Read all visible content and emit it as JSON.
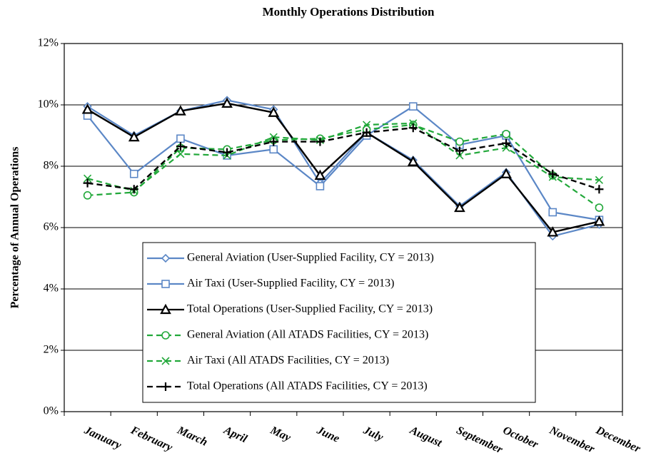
{
  "chart_data": {
    "type": "line",
    "title": "Monthly Operations Distribution",
    "y_label": "Percentage of Annual Operations",
    "categories": [
      "January",
      "February",
      "March",
      "April",
      "May",
      "June",
      "July",
      "August",
      "September",
      "October",
      "November",
      "December"
    ],
    "ylim": [
      0,
      12
    ],
    "yticks": [
      {
        "value": 0,
        "label": "0%"
      },
      {
        "value": 2,
        "label": "2%"
      },
      {
        "value": 4,
        "label": "4%"
      },
      {
        "value": 6,
        "label": "6%"
      },
      {
        "value": 8,
        "label": "8%"
      },
      {
        "value": 10,
        "label": "10%"
      },
      {
        "value": 12,
        "label": "12%"
      }
    ],
    "grid": true,
    "series": [
      {
        "name": "General Aviation (User-Supplied Facility, CY = 2013)",
        "color": "#5b87c6",
        "marker": "diamond",
        "dashed": false,
        "values": [
          9.95,
          9.0,
          9.8,
          10.15,
          9.85,
          7.45,
          9.1,
          8.2,
          6.7,
          7.8,
          5.72,
          6.1
        ]
      },
      {
        "name": "Air Taxi (User-Supplied Facility, CY = 2013)",
        "color": "#5b87c6",
        "marker": "square",
        "dashed": false,
        "values": [
          9.65,
          7.75,
          8.9,
          8.35,
          8.55,
          7.35,
          9.0,
          9.95,
          8.7,
          9.0,
          6.5,
          6.25
        ]
      },
      {
        "name": "Total Operations (User-Supplied Facility, CY = 2013)",
        "color": "#000000",
        "marker": "triangle",
        "dashed": false,
        "values": [
          9.85,
          8.95,
          9.8,
          10.05,
          9.75,
          7.7,
          9.1,
          8.15,
          6.65,
          7.75,
          5.85,
          6.2
        ]
      },
      {
        "name": "General Aviation (All ATADS Facilities, CY = 2013)",
        "color": "#22a83a",
        "marker": "circle",
        "dashed": true,
        "values": [
          7.05,
          7.15,
          8.6,
          8.55,
          8.85,
          8.9,
          9.2,
          9.35,
          8.8,
          9.05,
          7.7,
          6.65
        ]
      },
      {
        "name": "Air Taxi (All ATADS Facilities, CY = 2013)",
        "color": "#22a83a",
        "marker": "x",
        "dashed": true,
        "values": [
          7.6,
          7.2,
          8.4,
          8.35,
          8.95,
          8.85,
          9.35,
          9.4,
          8.35,
          8.6,
          7.65,
          7.55
        ]
      },
      {
        "name": "Total Operations (All ATADS Facilities, CY = 2013)",
        "color": "#000000",
        "marker": "plus",
        "dashed": true,
        "values": [
          7.45,
          7.25,
          8.65,
          8.45,
          8.8,
          8.8,
          9.1,
          9.25,
          8.5,
          8.75,
          7.75,
          7.25
        ]
      }
    ]
  }
}
